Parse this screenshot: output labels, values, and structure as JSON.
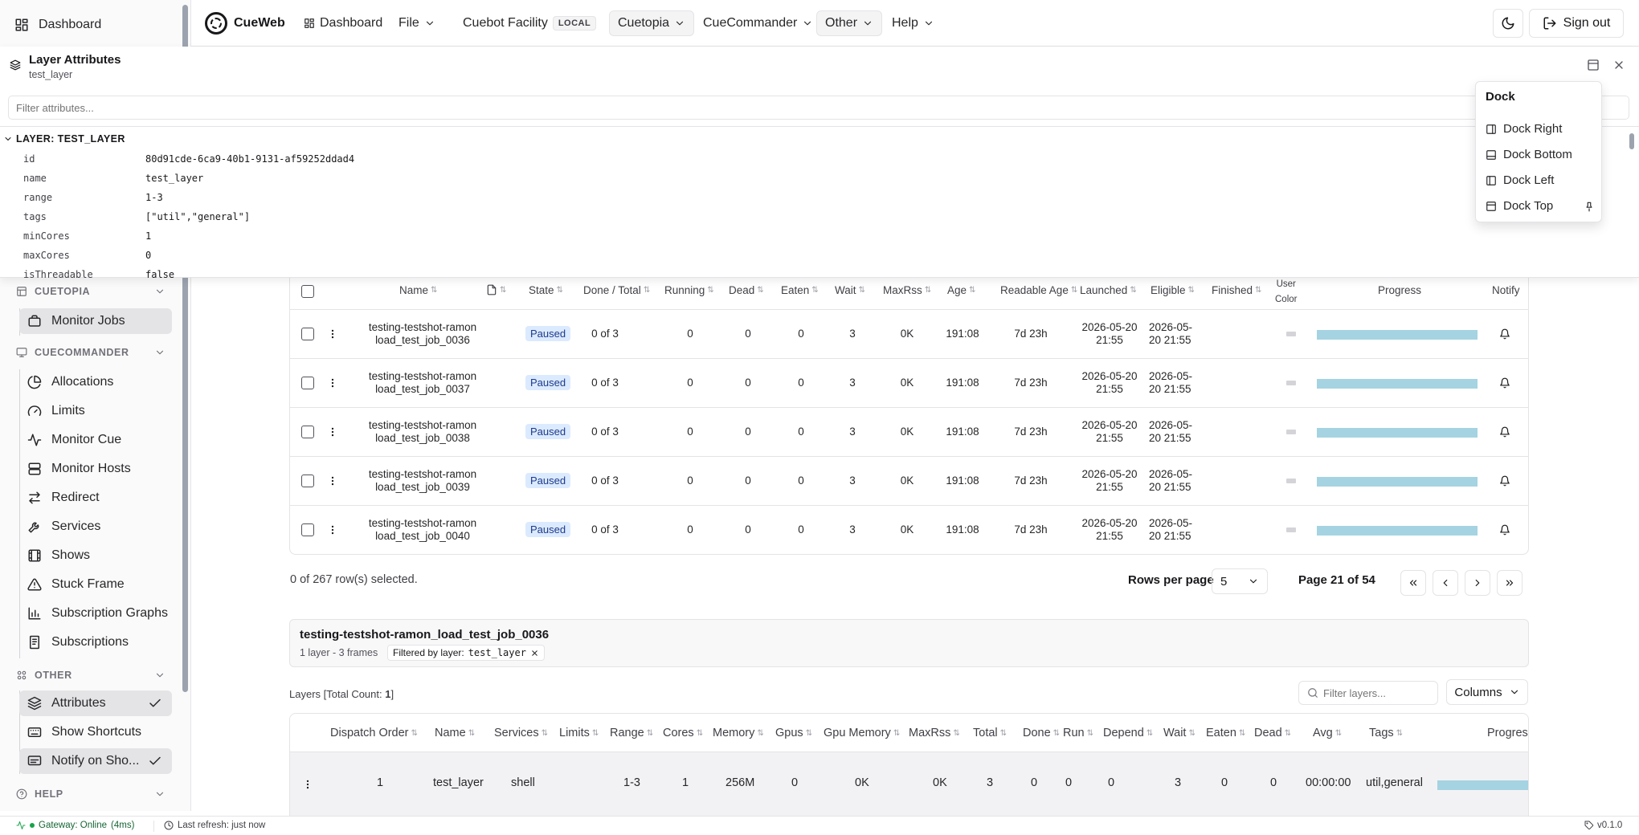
{
  "sidebar": {
    "dashboard": "Dashboard",
    "sections": [
      {
        "label": "CUETOPIA"
      },
      {
        "label": "CUECOMMANDER"
      },
      {
        "label": "OTHER"
      },
      {
        "label": "HELP"
      }
    ],
    "items": [
      {
        "label": "Monitor Jobs",
        "icon": "briefcase-icon",
        "active": true
      },
      {
        "label": "Allocations",
        "icon": "pie-chart-icon"
      },
      {
        "label": "Limits",
        "icon": "gauge-icon"
      },
      {
        "label": "Monitor Cue",
        "icon": "activity-icon"
      },
      {
        "label": "Monitor Hosts",
        "icon": "server-icon"
      },
      {
        "label": "Redirect",
        "icon": "arrows-icon"
      },
      {
        "label": "Services",
        "icon": "wrench-icon"
      },
      {
        "label": "Shows",
        "icon": "film-icon"
      },
      {
        "label": "Stuck Frame",
        "icon": "warning-icon"
      },
      {
        "label": "Subscription Graphs",
        "icon": "bar-chart-icon"
      },
      {
        "label": "Subscriptions",
        "icon": "receipt-icon"
      },
      {
        "label": "Attributes",
        "icon": "layers-icon",
        "active": true,
        "checked": true
      },
      {
        "label": "Show Shortcuts",
        "icon": "keyboard-icon"
      },
      {
        "label": "Notify on Sho...",
        "icon": "monitor-icon",
        "active": true,
        "checked": true
      }
    ]
  },
  "topbar": {
    "brand": "CueWeb",
    "dashboard": "Dashboard",
    "file": "File",
    "facility": "Cuebot Facility",
    "facility_badge": "LOCAL",
    "cuetopia": "Cuetopia",
    "cuecommander": "CueCommander",
    "other": "Other",
    "help": "Help",
    "signout": "Sign out"
  },
  "attributes": {
    "title": "Layer Attributes",
    "subtitle": "test_layer",
    "filter_placeholder": "Filter attributes...",
    "group": "LAYER: TEST_LAYER",
    "rows": [
      {
        "k": "id",
        "v": "80d91cde-6ca9-40b1-9131-af59252ddad4"
      },
      {
        "k": "name",
        "v": "test_layer"
      },
      {
        "k": "range",
        "v": "1-3"
      },
      {
        "k": "tags",
        "v": "[\"util\",\"general\"]"
      },
      {
        "k": "minCores",
        "v": "1"
      },
      {
        "k": "maxCores",
        "v": "0"
      },
      {
        "k": "isThreadable",
        "v": "false"
      }
    ]
  },
  "dock": {
    "title": "Dock",
    "items": [
      "Dock Right",
      "Dock Bottom",
      "Dock Left",
      "Dock Top"
    ]
  },
  "jobs": {
    "headers": {
      "name": "Name",
      "state": "State",
      "done_total": "Done / Total",
      "running": "Running",
      "dead": "Dead",
      "eaten": "Eaten",
      "wait": "Wait",
      "maxrss": "MaxRss",
      "age": "Age",
      "readable_age": "Readable Age",
      "launched": "Launched",
      "eligible": "Eligible",
      "finished": "Finished",
      "user_color_1": "User",
      "user_color_2": "Color",
      "progress": "Progress",
      "notify": "Notify"
    },
    "rows": [
      {
        "name1": "testing-testshot-ramon",
        "name2": "load_test_job_0036",
        "state": "Paused",
        "done": "0 of 3",
        "running": "0",
        "dead": "0",
        "eaten": "0",
        "wait": "3",
        "maxrss": "0K",
        "age": "191:08",
        "readable": "7d 23h",
        "launched1": "2026-05-20",
        "launched2": "21:55",
        "eligible1": "2026-05-",
        "eligible2": "20 21:55"
      },
      {
        "name1": "testing-testshot-ramon",
        "name2": "load_test_job_0037",
        "state": "Paused",
        "done": "0 of 3",
        "running": "0",
        "dead": "0",
        "eaten": "0",
        "wait": "3",
        "maxrss": "0K",
        "age": "191:08",
        "readable": "7d 23h",
        "launched1": "2026-05-20",
        "launched2": "21:55",
        "eligible1": "2026-05-",
        "eligible2": "20 21:55"
      },
      {
        "name1": "testing-testshot-ramon",
        "name2": "load_test_job_0038",
        "state": "Paused",
        "done": "0 of 3",
        "running": "0",
        "dead": "0",
        "eaten": "0",
        "wait": "3",
        "maxrss": "0K",
        "age": "191:08",
        "readable": "7d 23h",
        "launched1": "2026-05-20",
        "launched2": "21:55",
        "eligible1": "2026-05-",
        "eligible2": "20 21:55"
      },
      {
        "name1": "testing-testshot-ramon",
        "name2": "load_test_job_0039",
        "state": "Paused",
        "done": "0 of 3",
        "running": "0",
        "dead": "0",
        "eaten": "0",
        "wait": "3",
        "maxrss": "0K",
        "age": "191:08",
        "readable": "7d 23h",
        "launched1": "2026-05-20",
        "launched2": "21:55",
        "eligible1": "2026-05-",
        "eligible2": "20 21:55"
      },
      {
        "name1": "testing-testshot-ramon",
        "name2": "load_test_job_0040",
        "state": "Paused",
        "done": "0 of 3",
        "running": "0",
        "dead": "0",
        "eaten": "0",
        "wait": "3",
        "maxrss": "0K",
        "age": "191:08",
        "readable": "7d 23h",
        "launched1": "2026-05-20",
        "launched2": "21:55",
        "eligible1": "2026-05-",
        "eligible2": "20 21:55"
      }
    ],
    "selected_text": "0 of 267 row(s) selected.",
    "rows_per_page_label": "Rows per page",
    "rows_per_page": "5",
    "page_text": "Page 21 of 54"
  },
  "detail": {
    "title": "testing-testshot-ramon_load_test_job_0036",
    "meta": "1 layer - 3 frames",
    "filter_label": "Filtered by layer:",
    "filter_value": "test_layer"
  },
  "layers": {
    "count_label": "Layers [Total Count: ",
    "count": "1",
    "count_close": "]",
    "filter_placeholder": "Filter layers...",
    "columns_button": "Columns",
    "headers": [
      "Dispatch Order",
      "Name",
      "Services",
      "Limits",
      "Range",
      "Cores",
      "Memory",
      "Gpus",
      "Gpu Memory",
      "MaxRss",
      "Total",
      "Done",
      "Run",
      "Depend",
      "Wait",
      "Eaten",
      "Dead",
      "Avg",
      "Tags",
      "Progres"
    ],
    "row": [
      "1",
      "test_layer",
      "shell",
      "",
      "1-3",
      "1",
      "256M",
      "0",
      "0K",
      "0K",
      "3",
      "0",
      "0",
      "0",
      "3",
      "0",
      "0",
      "00:00:00",
      "util,general"
    ]
  },
  "status": {
    "gateway": "Gateway: Online",
    "latency": "(4ms)",
    "refresh": "Last refresh: just now",
    "version": "v0.1.0"
  },
  "colors": {
    "progress": "#a5d3e1",
    "paused_bg": "#dbeafe",
    "online": "#16a34a"
  }
}
